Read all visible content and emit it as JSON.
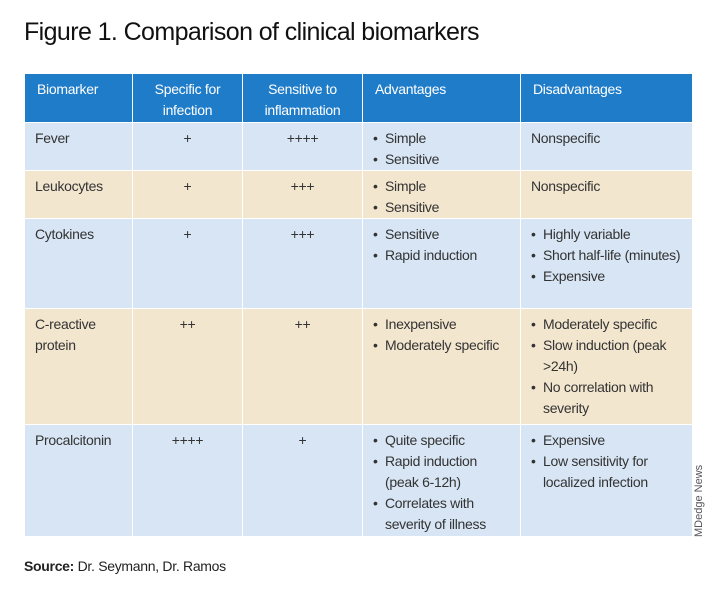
{
  "title": "Figure 1. Comparison of clinical biomarkers",
  "table": {
    "headers": [
      "Biomarker",
      "Specific for infection",
      "Sensitive to inflammation",
      "Advantages",
      "Disadvantages"
    ],
    "rows": [
      {
        "biomarker": "Fever",
        "specific": "+",
        "sensitive": "++++",
        "advantages": [
          "Simple",
          "Sensitive"
        ],
        "disadvantages": "Nonspecific"
      },
      {
        "biomarker": "Leukocytes",
        "specific": "+",
        "sensitive": "+++",
        "advantages": [
          "Simple",
          "Sensitive"
        ],
        "disadvantages": "Nonspecific"
      },
      {
        "biomarker": "Cytokines",
        "specific": "+",
        "sensitive": "+++",
        "advantages": [
          "Sensitive",
          "Rapid induction"
        ],
        "disadvantages": [
          "Highly variable",
          "Short half-life (minutes)",
          "Expensive"
        ]
      },
      {
        "biomarker": "C-reactive protein",
        "specific": "++",
        "sensitive": "++",
        "advantages": [
          "Inexpensive",
          "Moderately specific"
        ],
        "disadvantages": [
          "Moderately specific",
          "Slow induction (peak >24h)",
          "No correlation with severity"
        ]
      },
      {
        "biomarker": "Procalcitonin",
        "specific": "++++",
        "sensitive": "+",
        "advantages": [
          "Quite specific",
          "Rapid induction (peak 6-12h)",
          "Correlates with severity of illness"
        ],
        "disadvantages": [
          "Expensive",
          "Low sensitivity for localized infection"
        ]
      }
    ]
  },
  "source_label": "Source:",
  "source": "Dr. Seymann, Dr. Ramos",
  "credit": "MDedge News"
}
